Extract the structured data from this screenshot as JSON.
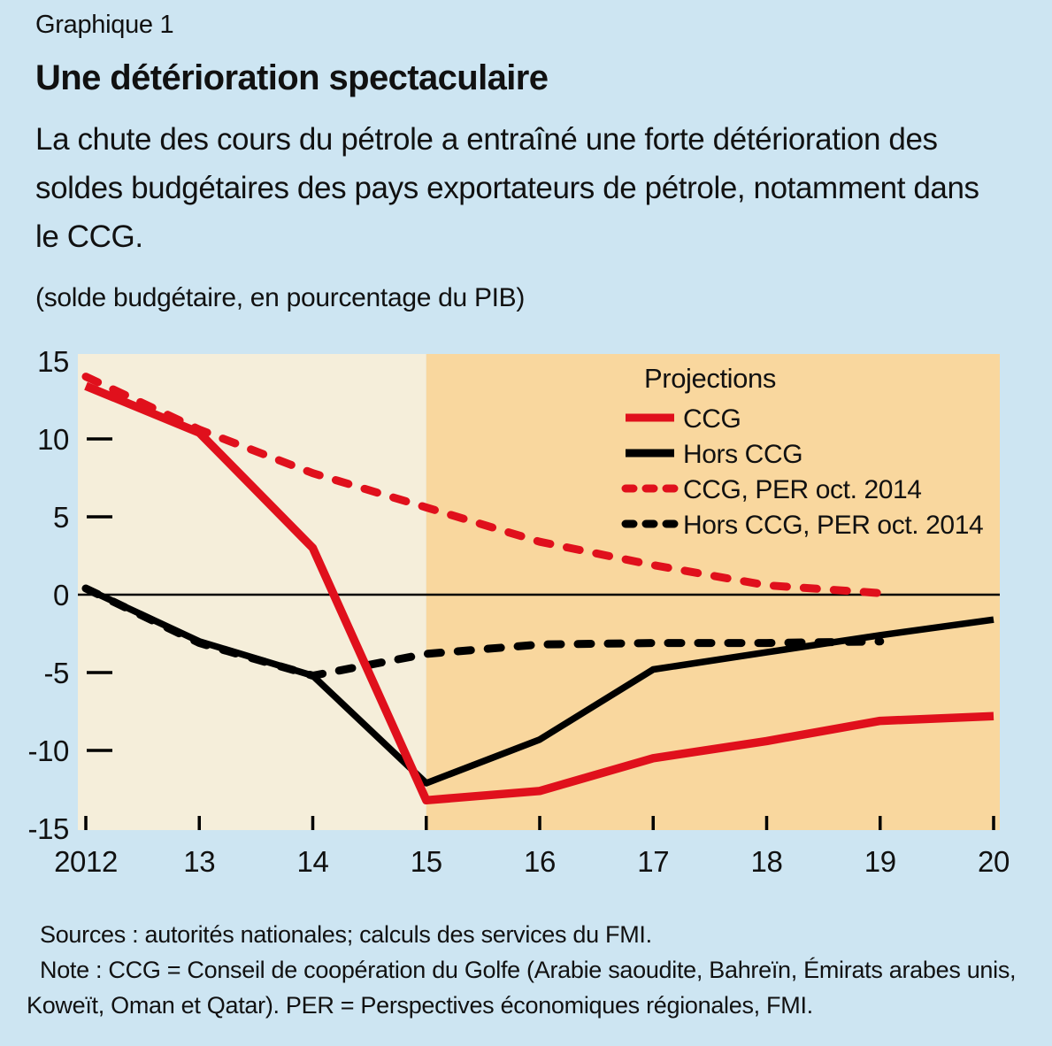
{
  "header": {
    "kicker": "Graphique 1",
    "title": "Une détérioration spectaculaire",
    "subtitle": "La chute des cours du pétrole a entraîné une forte détérioration des soldes budgétaires des pays exportateurs de pétrole, notamment dans le CCG.",
    "units": "(solde budgétaire, en pourcentage du PIB)"
  },
  "chart_data": {
    "type": "line",
    "x": [
      2012,
      2013,
      2014,
      2015,
      2016,
      2017,
      2018,
      2019,
      2020
    ],
    "x_tick_labels": [
      "2012",
      "13",
      "14",
      "15",
      "16",
      "17",
      "18",
      "19",
      "20"
    ],
    "ylim": [
      -15,
      15
    ],
    "y_ticks": [
      15,
      10,
      5,
      0,
      -5,
      -10,
      -15
    ],
    "y_tick_dashes": [
      10,
      5,
      -5,
      -10
    ],
    "grid": "off",
    "legend_position": "top-right-inside",
    "legend_title": "Projections",
    "projection_start_year": 2015,
    "series": [
      {
        "name": "CCG",
        "style": "solid",
        "color": "#e0101c",
        "values": [
          13.4,
          10.4,
          3.0,
          -13.2,
          -12.6,
          -10.5,
          -9.4,
          -8.1,
          -7.8
        ]
      },
      {
        "name": "Hors CCG",
        "style": "solid",
        "color": "#000000",
        "values": [
          0.4,
          -3.0,
          -5.2,
          -12.1,
          -9.3,
          -4.8,
          -3.7,
          -2.6,
          -1.6
        ]
      },
      {
        "name": "CCG, PER oct. 2014",
        "style": "dashed",
        "color": "#e0101c",
        "values": [
          14.0,
          10.6,
          7.8,
          5.6,
          3.4,
          1.9,
          0.6,
          0.1,
          null
        ]
      },
      {
        "name": "Hors CCG, PER oct. 2014",
        "style": "dashed",
        "color": "#000000",
        "values": [
          0.4,
          -3.1,
          -5.2,
          -3.8,
          -3.2,
          -3.1,
          -3.1,
          -3.0,
          null
        ]
      }
    ]
  },
  "footer": {
    "sources": "Sources : autorités nationales; calculs des services du FMI.",
    "note": "Note : CCG = Conseil de coopération du Golfe (Arabie saoudite, Bahreïn, Émirats arabes unis, Koweït, Oman et Qatar). PER = Perspectives économiques régionales, FMI."
  },
  "colors": {
    "page_bg": "#cde5f2",
    "plot_bg_history": "#f5eeda",
    "plot_bg_projection": "#f9d79e",
    "accent_red": "#e0101c",
    "line_black": "#000000",
    "text": "#111111"
  }
}
